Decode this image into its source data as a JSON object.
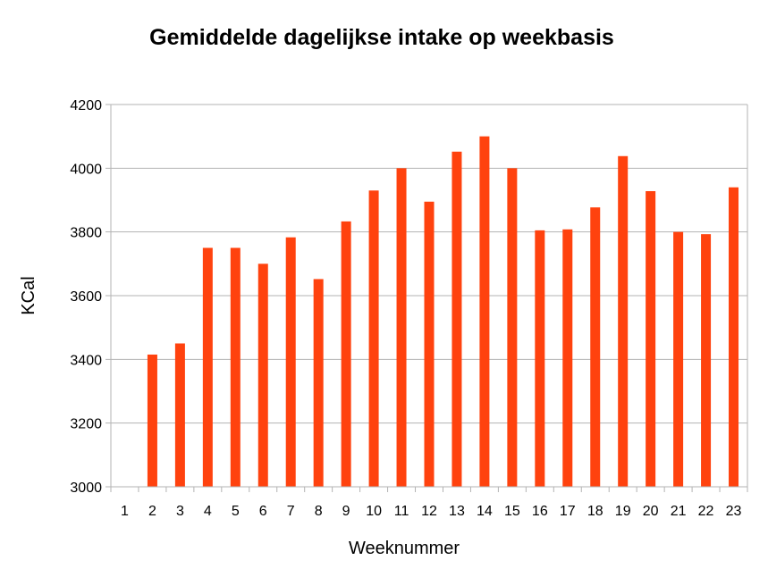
{
  "chart_data": {
    "type": "bar",
    "title": "Gemiddelde dagelijkse intake op weekbasis",
    "xlabel": "Weeknummer",
    "ylabel": "KCal",
    "categories": [
      "1",
      "2",
      "3",
      "4",
      "5",
      "6",
      "7",
      "8",
      "9",
      "10",
      "11",
      "12",
      "13",
      "14",
      "15",
      "16",
      "17",
      "18",
      "19",
      "20",
      "21",
      "22",
      "23"
    ],
    "values": [
      null,
      3415,
      3450,
      3750,
      3750,
      3700,
      3783,
      3652,
      3833,
      3930,
      4000,
      3895,
      4052,
      4100,
      4000,
      3805,
      3808,
      3877,
      4038,
      3928,
      3800,
      3793,
      3940
    ],
    "ylim": [
      3000,
      4200
    ],
    "yticks": [
      3000,
      3200,
      3400,
      3600,
      3800,
      4000,
      4200
    ],
    "grid": true,
    "legend": "none",
    "bar_color": "#ff420e",
    "grid_color": "#b3b3b3"
  }
}
